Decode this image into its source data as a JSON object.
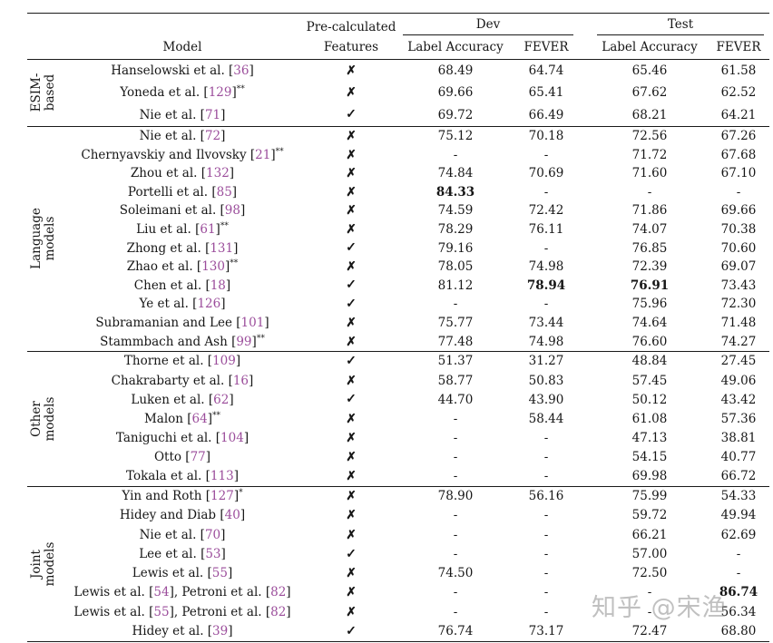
{
  "colors": {
    "citation": "#9b4d9b",
    "text": "#161616",
    "rule": "#1a1a1a",
    "watermark_gray": "#8c8c8c"
  },
  "watermark": {
    "text": "知乎 @宋渔"
  },
  "table": {
    "header": {
      "model": "Model",
      "features_line1": "Pre-calculated",
      "features_line2": "Features",
      "dev": "Dev",
      "test": "Test",
      "dev_label_accuracy": "Label Accuracy",
      "dev_fever": "FEVER",
      "test_label_accuracy": "Label Accuracy",
      "test_fever": "FEVER"
    },
    "marks": {
      "yes": "✓",
      "no": "✗"
    },
    "sections": [
      {
        "group": [
          "ESIM-",
          "based"
        ],
        "rows": [
          {
            "model": "Hanselowski et al. [36]",
            "sup": "",
            "features": "no",
            "values": [
              "68.49",
              "64.74",
              "65.46",
              "61.58"
            ],
            "bold": []
          },
          {
            "model": "Yoneda et al. [129]",
            "sup": "**",
            "features": "no",
            "values": [
              "69.66",
              "65.41",
              "67.62",
              "62.52"
            ],
            "bold": []
          },
          {
            "model": "Nie et al. [71]",
            "sup": "",
            "features": "yes",
            "values": [
              "69.72",
              "66.49",
              "68.21",
              "64.21"
            ],
            "bold": []
          }
        ]
      },
      {
        "group": [
          "Language",
          "models"
        ],
        "rows": [
          {
            "model": "Nie et al. [72]",
            "sup": "",
            "features": "no",
            "values": [
              "75.12",
              "70.18",
              "72.56",
              "67.26"
            ],
            "bold": []
          },
          {
            "model": "Chernyavskiy and Ilvovsky [21]",
            "sup": "**",
            "features": "no",
            "values": [
              "-",
              "-",
              "71.72",
              "67.68"
            ],
            "bold": []
          },
          {
            "model": "Zhou et al. [132]",
            "sup": "",
            "features": "no",
            "values": [
              "74.84",
              "70.69",
              "71.60",
              "67.10"
            ],
            "bold": []
          },
          {
            "model": "Portelli et al. [85]",
            "sup": "",
            "features": "no",
            "values": [
              "84.33",
              "-",
              "-",
              "-"
            ],
            "bold": [
              0
            ]
          },
          {
            "model": "Soleimani et al. [98]",
            "sup": "",
            "features": "no",
            "values": [
              "74.59",
              "72.42",
              "71.86",
              "69.66"
            ],
            "bold": []
          },
          {
            "model": "Liu et al. [61]",
            "sup": "**",
            "features": "no",
            "values": [
              "78.29",
              "76.11",
              "74.07",
              "70.38"
            ],
            "bold": []
          },
          {
            "model": "Zhong et al. [131]",
            "sup": "",
            "features": "yes",
            "values": [
              "79.16",
              "-",
              "76.85",
              "70.60"
            ],
            "bold": []
          },
          {
            "model": "Zhao et al. [130]",
            "sup": "**",
            "features": "no",
            "values": [
              "78.05",
              "74.98",
              "72.39",
              "69.07"
            ],
            "bold": []
          },
          {
            "model": "Chen et al. [18]",
            "sup": "",
            "features": "yes",
            "values": [
              "81.12",
              "78.94",
              "76.91",
              "73.43"
            ],
            "bold": [
              1,
              2
            ]
          },
          {
            "model": "Ye et al. [126]",
            "sup": "",
            "features": "yes",
            "values": [
              "-",
              "-",
              "75.96",
              "72.30"
            ],
            "bold": []
          },
          {
            "model": "Subramanian and Lee [101]",
            "sup": "",
            "features": "no",
            "values": [
              "75.77",
              "73.44",
              "74.64",
              "71.48"
            ],
            "bold": []
          },
          {
            "model": "Stammbach and Ash [99]",
            "sup": "**",
            "features": "no",
            "values": [
              "77.48",
              "74.98",
              "76.60",
              "74.27"
            ],
            "bold": []
          }
        ]
      },
      {
        "group": [
          "Other",
          "models"
        ],
        "rows": [
          {
            "model": "Thorne et al. [109]",
            "sup": "",
            "features": "yes",
            "values": [
              "51.37",
              "31.27",
              "48.84",
              "27.45"
            ],
            "bold": []
          },
          {
            "model": "Chakrabarty et al. [16]",
            "sup": "",
            "features": "no",
            "values": [
              "58.77",
              "50.83",
              "57.45",
              "49.06"
            ],
            "bold": []
          },
          {
            "model": "Luken et al. [62]",
            "sup": "",
            "features": "yes",
            "values": [
              "44.70",
              "43.90",
              "50.12",
              "43.42"
            ],
            "bold": []
          },
          {
            "model": "Malon [64]",
            "sup": "**",
            "features": "no",
            "values": [
              "-",
              "58.44",
              "61.08",
              "57.36"
            ],
            "bold": []
          },
          {
            "model": "Taniguchi et al. [104]",
            "sup": "",
            "features": "no",
            "values": [
              "-",
              "-",
              "47.13",
              "38.81"
            ],
            "bold": []
          },
          {
            "model": "Otto [77]",
            "sup": "",
            "features": "no",
            "values": [
              "-",
              "-",
              "54.15",
              "40.77"
            ],
            "bold": []
          },
          {
            "model": "Tokala et al. [113]",
            "sup": "",
            "features": "no",
            "values": [
              "-",
              "-",
              "69.98",
              "66.72"
            ],
            "bold": []
          }
        ]
      },
      {
        "group": [
          "Joint",
          "models"
        ],
        "rows": [
          {
            "model": "Yin and Roth [127]",
            "sup": "*",
            "features": "no",
            "values": [
              "78.90",
              "56.16",
              "75.99",
              "54.33"
            ],
            "bold": []
          },
          {
            "model": "Hidey and Diab [40]",
            "sup": "",
            "features": "no",
            "values": [
              "-",
              "-",
              "59.72",
              "49.94"
            ],
            "bold": []
          },
          {
            "model": "Nie et al. [70]",
            "sup": "",
            "features": "no",
            "values": [
              "-",
              "-",
              "66.21",
              "62.69"
            ],
            "bold": []
          },
          {
            "model": "Lee et al. [53]",
            "sup": "",
            "features": "yes",
            "values": [
              "-",
              "-",
              "57.00",
              "-"
            ],
            "bold": []
          },
          {
            "model": "Lewis et al. [55]",
            "sup": "",
            "features": "no",
            "values": [
              "74.50",
              "-",
              "72.50",
              "-"
            ],
            "bold": []
          },
          {
            "model": "Lewis et al. [54], Petroni et al. [82]",
            "sup": "",
            "features": "no",
            "values": [
              "-",
              "-",
              "-",
              "86.74"
            ],
            "bold": [
              3
            ]
          },
          {
            "model": "Lewis et al. [55], Petroni et al. [82]",
            "sup": "",
            "features": "no",
            "values": [
              "-",
              "-",
              "-",
              "56.34"
            ],
            "bold": []
          },
          {
            "model": "Hidey et al. [39]",
            "sup": "",
            "features": "yes",
            "values": [
              "76.74",
              "73.17",
              "72.47",
              "68.80"
            ],
            "bold": []
          }
        ]
      }
    ]
  }
}
